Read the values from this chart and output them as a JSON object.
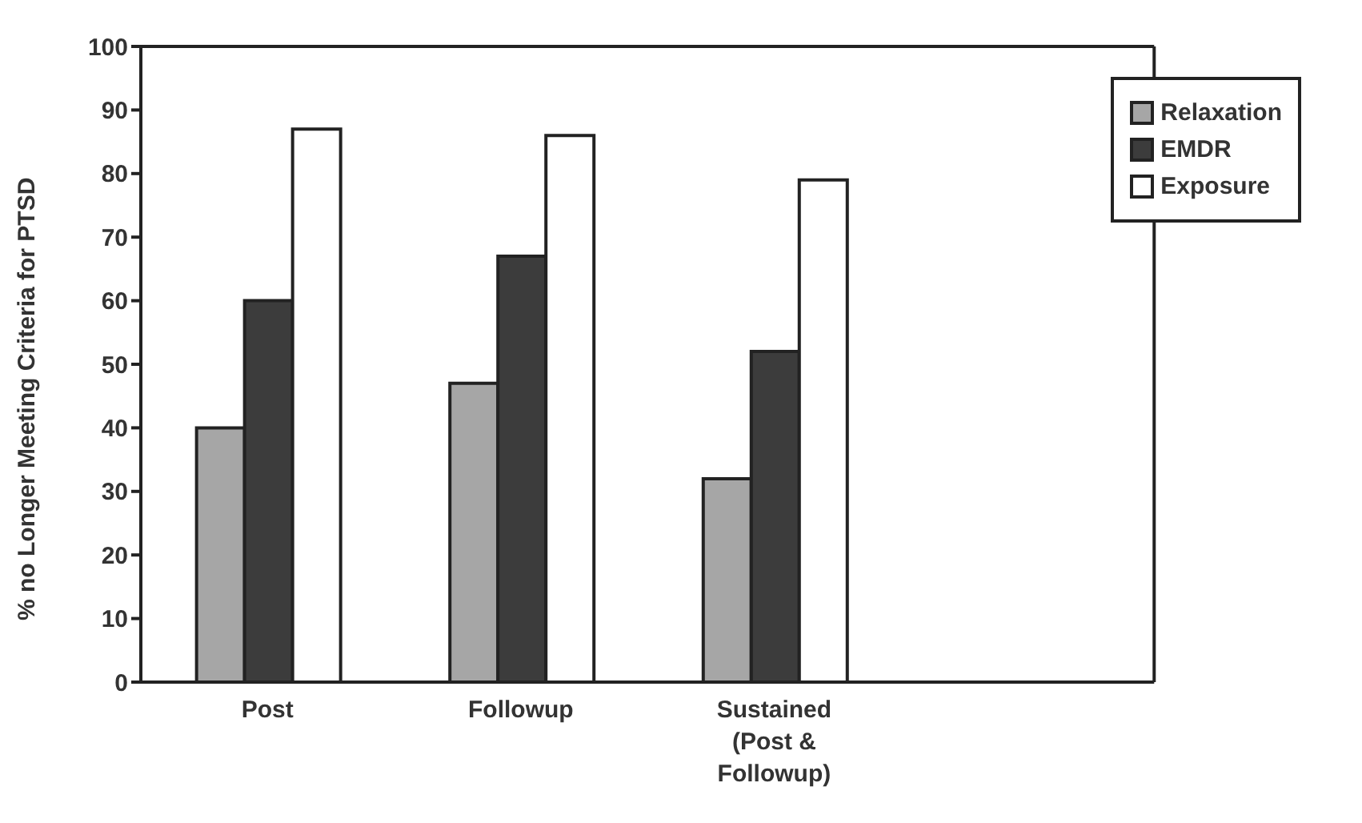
{
  "chart_data": {
    "type": "bar",
    "ylabel": "% no Longer Meeting Criteria for PTSD",
    "categories": [
      "Post",
      "Followup",
      "Sustained (Post & Followup)",
      null
    ],
    "series": [
      {
        "name": "Relaxation",
        "color": "#a6a6a6",
        "values": [
          40,
          47,
          32,
          null
        ]
      },
      {
        "name": "EMDR",
        "color": "#3c3c3c",
        "values": [
          60,
          67,
          52,
          null
        ]
      },
      {
        "name": "Exposure",
        "color": "#ffffff",
        "values": [
          87,
          86,
          79,
          null
        ]
      }
    ],
    "ylim": [
      0,
      100
    ],
    "yticks": [
      0,
      10,
      20,
      30,
      40,
      50,
      60,
      70,
      80,
      90,
      100
    ],
    "grid": false,
    "legend": "top right"
  }
}
